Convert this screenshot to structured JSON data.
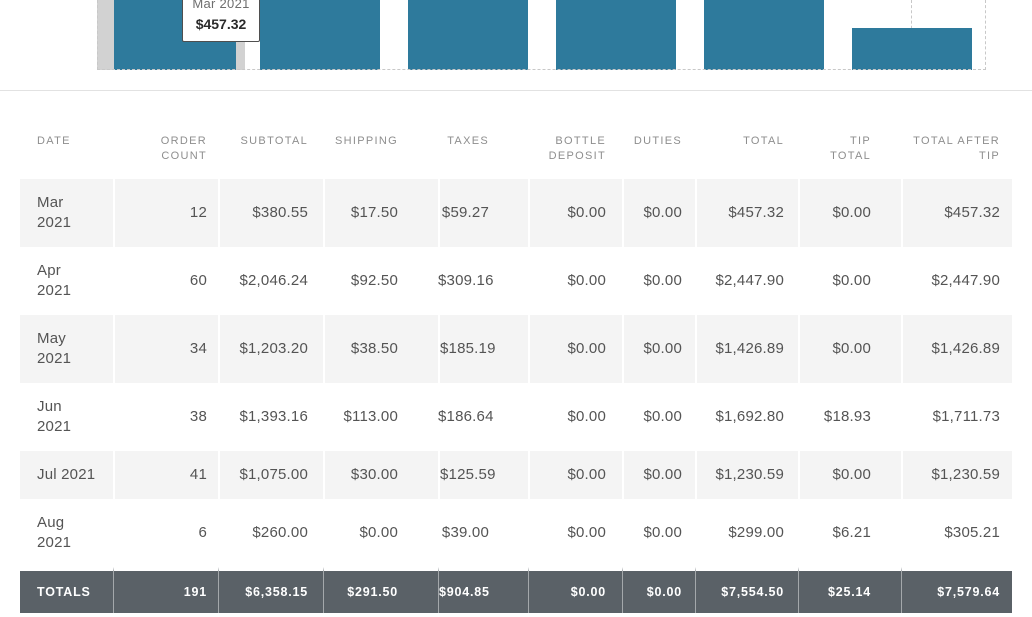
{
  "chart": {
    "tooltip": {
      "label": "Mar 2021",
      "value": "$457.32"
    },
    "hovered_category": "Mar 2021",
    "colors": {
      "bar": "#2e7a9c",
      "hover_band": "#d2d2d2",
      "dashed_border": "#c8c8c8"
    }
  },
  "chart_data": {
    "type": "bar",
    "categories": [
      "Mar 2021",
      "Apr 2021",
      "May 2021",
      "Jun 2021",
      "Jul 2021",
      "Aug 2021"
    ],
    "series": [
      {
        "name": "Total",
        "values": [
          457.32,
          2447.9,
          1426.89,
          1692.8,
          1230.59,
          299.0
        ]
      }
    ],
    "title": "",
    "xlabel": "",
    "ylabel": "",
    "legend": false,
    "grid": "dashed-frame",
    "note": "chart is cropped at top of screenshot; tooltip shown for hovered Mar 2021 bar"
  },
  "table": {
    "columns": [
      {
        "key": "date",
        "label": "DATE"
      },
      {
        "key": "order_count",
        "label": "ORDER\nCOUNT"
      },
      {
        "key": "subtotal",
        "label": "SUBTOTAL"
      },
      {
        "key": "shipping",
        "label": "SHIPPING"
      },
      {
        "key": "taxes",
        "label": "TAXES"
      },
      {
        "key": "bottle_deposit",
        "label": "BOTTLE\nDEPOSIT"
      },
      {
        "key": "duties",
        "label": "DUTIES"
      },
      {
        "key": "total",
        "label": "TOTAL"
      },
      {
        "key": "tip_total",
        "label": "TIP\nTOTAL"
      },
      {
        "key": "total_after_tip",
        "label": "TOTAL AFTER\nTIP"
      }
    ],
    "rows": [
      {
        "date": "Mar\n2021",
        "values": [
          "12",
          "$380.55",
          "$17.50",
          "$59.27",
          "$0.00",
          "$0.00",
          "$457.32",
          "$0.00",
          "$457.32"
        ]
      },
      {
        "date": "Apr\n2021",
        "values": [
          "60",
          "$2,046.24",
          "$92.50",
          "$309.16",
          "$0.00",
          "$0.00",
          "$2,447.90",
          "$0.00",
          "$2,447.90"
        ]
      },
      {
        "date": "May\n2021",
        "values": [
          "34",
          "$1,203.20",
          "$38.50",
          "$185.19",
          "$0.00",
          "$0.00",
          "$1,426.89",
          "$0.00",
          "$1,426.89"
        ]
      },
      {
        "date": "Jun\n2021",
        "values": [
          "38",
          "$1,393.16",
          "$113.00",
          "$186.64",
          "$0.00",
          "$0.00",
          "$1,692.80",
          "$18.93",
          "$1,711.73"
        ]
      },
      {
        "date": "Jul 2021",
        "values": [
          "41",
          "$1,075.00",
          "$30.00",
          "$125.59",
          "$0.00",
          "$0.00",
          "$1,230.59",
          "$0.00",
          "$1,230.59"
        ]
      },
      {
        "date": "Aug\n2021",
        "values": [
          "6",
          "$260.00",
          "$0.00",
          "$39.00",
          "$0.00",
          "$0.00",
          "$299.00",
          "$6.21",
          "$305.21"
        ]
      }
    ],
    "totals": {
      "label": "TOTALS",
      "values": [
        "191",
        "$6,358.15",
        "$291.50",
        "$904.85",
        "$0.00",
        "$0.00",
        "$7,554.50",
        "$25.14",
        "$7,579.64"
      ]
    },
    "colors": {
      "row_stripe": "#f4f4f4",
      "totals_bg": "#5a6167",
      "header_text": "#8e8e8e",
      "body_text": "#545454"
    }
  }
}
